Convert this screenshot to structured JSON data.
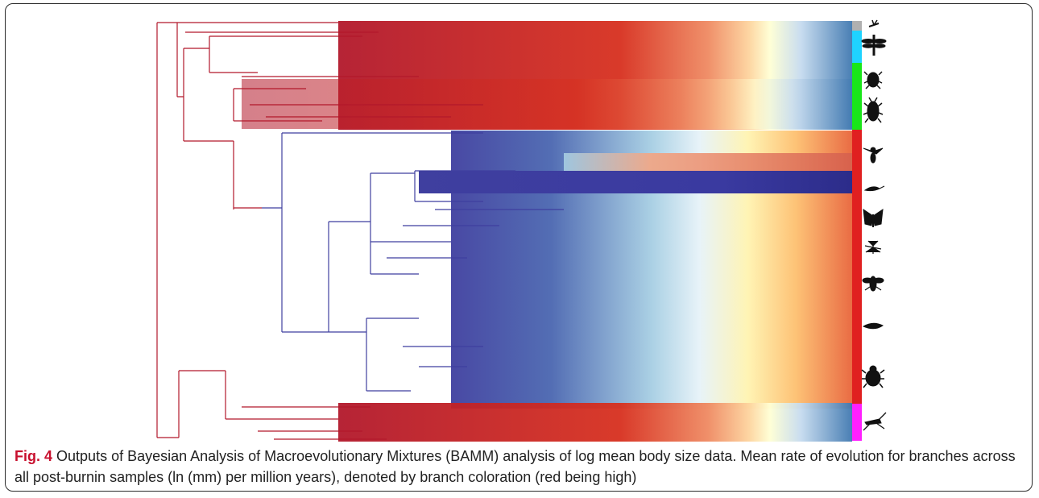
{
  "figure": {
    "label": "Fig. 4",
    "caption": "Outputs of Bayesian Analysis of Macroevolutionary Mixtures (BAMM) analysis of log mean body size data. Mean rate of evolution for branches across all post-burnin samples (ln (mm) per million years), denoted by branch coloration (red being high)"
  },
  "colors": {
    "rate_high": "#b2182b",
    "rate_mid_high": "#ef8a62",
    "rate_mid": "#fff3b0",
    "rate_mid_low": "#a6cee3",
    "rate_low": "#3f3f9f",
    "clade_gray": "#b0b0b0",
    "clade_cyan": "#1fd3ff",
    "clade_green": "#19e619",
    "clade_red": "#e02020",
    "clade_magenta": "#ff20ff"
  },
  "clades": [
    {
      "color": "clade_gray",
      "icon": "mayfly-icon"
    },
    {
      "color": "clade_cyan",
      "icon": "dragonfly-icon"
    },
    {
      "color": "clade_green",
      "icon": "true-bug-icon"
    },
    {
      "color": "clade_green",
      "icon": "cockroach-icon"
    },
    {
      "color": "clade_red",
      "icon": "wasp-icon"
    },
    {
      "color": "clade_red",
      "icon": "caddisfly-icon"
    },
    {
      "color": "clade_red",
      "icon": "butterfly-icon"
    },
    {
      "color": "clade_red",
      "icon": "mosquito-icon"
    },
    {
      "color": "clade_red",
      "icon": "fly-icon"
    },
    {
      "color": "clade_red",
      "icon": "moth-icon"
    },
    {
      "color": "clade_red",
      "icon": "beetle-icon"
    },
    {
      "color": "clade_magenta",
      "icon": "cricket-icon"
    }
  ]
}
